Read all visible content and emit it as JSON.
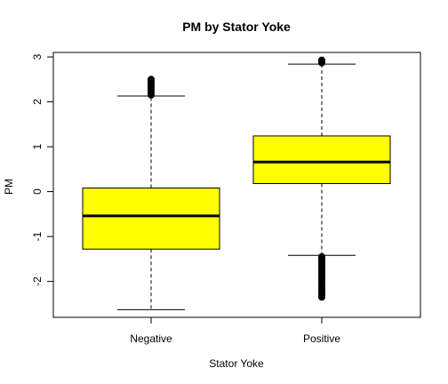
{
  "chart_data": {
    "type": "boxplot",
    "title": "PM by Stator Yoke",
    "xlabel": "Stator Yoke",
    "ylabel": "PM",
    "ylim": [
      -2.8,
      3.1
    ],
    "yticks": [
      -2,
      -1,
      0,
      1,
      2,
      3
    ],
    "fill_color": "#ffff00",
    "categories": [
      "Negative",
      "Positive"
    ],
    "boxes": [
      {
        "name": "Negative",
        "whisker_low": -2.63,
        "q1": -1.28,
        "median": -0.54,
        "q3": 0.08,
        "whisker_high": 2.13,
        "outliers_low": [],
        "outliers_high": [
          2.15,
          2.2,
          2.25,
          2.3,
          2.35,
          2.4,
          2.45,
          2.5
        ]
      },
      {
        "name": "Positive",
        "whisker_low": -1.42,
        "q1": 0.18,
        "median": 0.66,
        "q3": 1.24,
        "whisker_high": 2.84,
        "outliers_low": [
          -1.45,
          -1.5,
          -1.55,
          -1.6,
          -1.65,
          -1.7,
          -1.75,
          -1.8,
          -1.85,
          -1.9,
          -1.95,
          -2.0,
          -2.05,
          -2.1,
          -2.15,
          -2.2,
          -2.25,
          -2.3,
          -2.35
        ],
        "outliers_high": [
          2.87,
          2.9,
          2.93
        ]
      }
    ]
  }
}
